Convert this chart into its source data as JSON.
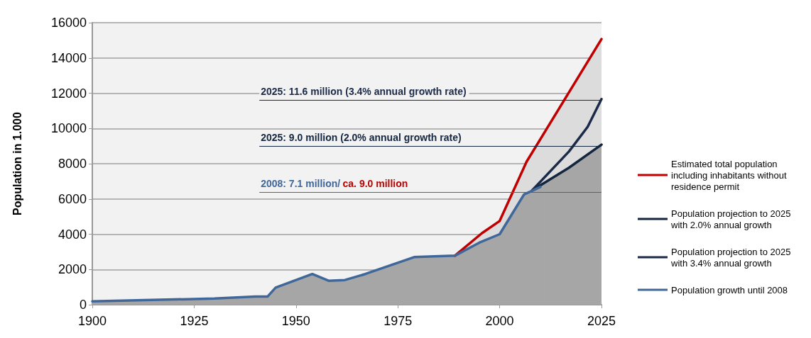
{
  "chart_data": {
    "type": "line",
    "ylabel": "Population in 1.000",
    "xlim": [
      1900,
      2025
    ],
    "xticks": [
      1900,
      1925,
      1950,
      1975,
      2000,
      2025
    ],
    "ylim": [
      0,
      16000
    ],
    "yticks": [
      0,
      2000,
      4000,
      6000,
      8000,
      10000,
      12000,
      14000,
      16000
    ],
    "grid": "y",
    "legend": "right",
    "marker": "none",
    "line_style": "solid",
    "series": [
      {
        "name": "Estimated total population including inhabitants without residence permit",
        "type": "area",
        "color": "#c00000",
        "x": [
          1989,
          1995.6,
          2000,
          2006.6,
          2025
        ],
        "values": [
          2780,
          4050,
          4750,
          8110,
          15070
        ]
      },
      {
        "name": "Population projection to 2025 with 2.0% annual growth",
        "type": "area",
        "color": "#14253f",
        "x": [
          2008,
          2017,
          2025
        ],
        "values": [
          6490,
          7770,
          9080
        ]
      },
      {
        "name": "Population projection to 2025 with 3.4% annual growth",
        "color": "#1b2a48",
        "x": [
          2008,
          2017,
          2021.6,
          2025
        ],
        "values": [
          6490,
          8690,
          10090,
          11670
        ]
      },
      {
        "name": "Population growth until 2008",
        "type": "area",
        "color": "#3f6799",
        "x": [
          1900,
          1930,
          1940,
          1943,
          1945,
          1954,
          1958,
          1962,
          1967,
          1979,
          1989,
          1995,
          2000,
          2006,
          2010
        ],
        "values": [
          190,
          350,
          460,
          460,
          970,
          1740,
          1360,
          1400,
          1740,
          2700,
          2780,
          3520,
          4000,
          6260,
          6680
        ]
      }
    ],
    "ref_lines": [
      {
        "axis": "y",
        "value": 11600,
        "label": "2025: 11.6 million (3.4% annual growth rate)",
        "color": "#1b2a48"
      },
      {
        "axis": "y",
        "value": 9000,
        "label": "2025: 9.0 million (2.0% annual growth rate)",
        "color": "#14253f"
      },
      {
        "axis": "y",
        "value": 6400,
        "color": "#3f6799"
      }
    ],
    "annotations": [
      "2008: 7.1 million/",
      "ca. 9.0 million"
    ]
  }
}
